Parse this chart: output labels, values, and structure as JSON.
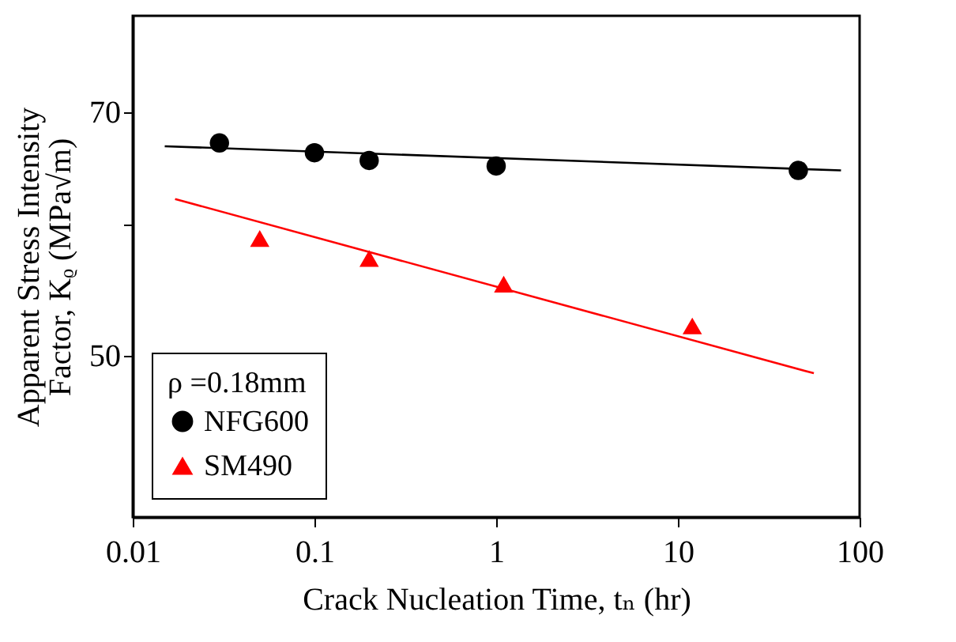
{
  "chart_data": {
    "type": "scatter",
    "xlabel": "Crack Nucleation Time, tₙ (hr)",
    "ylabel": "Apparent Stress Intensity\nFactor, Kᵨ (MPa√m)",
    "legend_title": "ρ =0.18mm",
    "log": "xy",
    "grid": false,
    "legend": "bottom left",
    "xlim": [
      0.01,
      100
    ],
    "xticks": [
      0.01,
      0.1,
      1,
      10,
      100
    ],
    "ylim": [
      40,
      80
    ],
    "yticks": [
      50,
      {
        "value": 60,
        "label": null
      },
      70
    ],
    "series": [
      {
        "name": "NFG600",
        "color": "#000000",
        "marker": "circle",
        "x": [
          0.03,
          0.1,
          0.2,
          1,
          46
        ],
        "values": [
          67.1,
          66.2,
          65.5,
          65.0,
          64.6
        ]
      },
      {
        "name": "SM490",
        "color": "#ff0000",
        "marker": "triangle",
        "x": [
          0.05,
          0.2,
          1.1,
          12
        ],
        "values": [
          58.8,
          57.2,
          55.2,
          52.1
        ]
      },
      {
        "type": "line",
        "color": "#000000",
        "marker": "none",
        "x": [
          0.015,
          79
        ],
        "values": [
          66.8,
          64.6
        ]
      },
      {
        "type": "line",
        "color": "#ff0000",
        "marker": "none",
        "x": [
          0.0171,
          56
        ],
        "values": [
          62.1,
          48.8
        ]
      }
    ]
  }
}
